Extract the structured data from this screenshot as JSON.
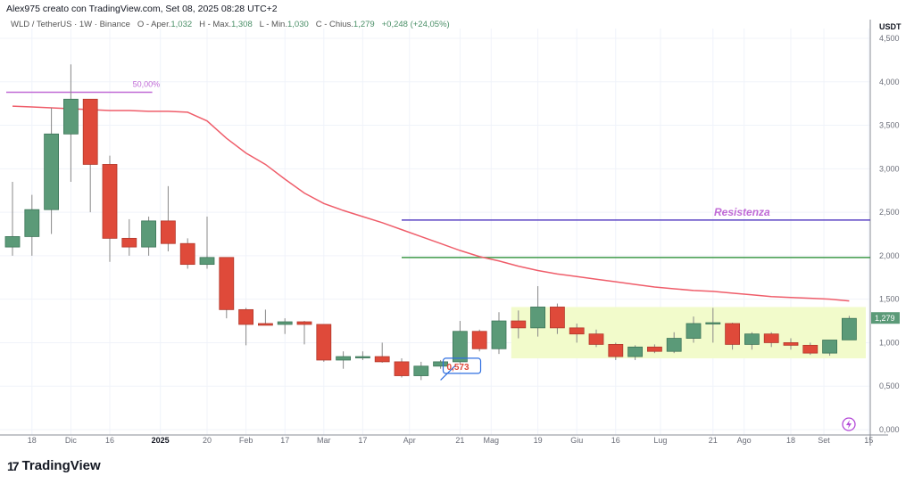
{
  "credit": "Alex975 creato con TradingView.com, Set 08, 2025 08:28 UTC+2",
  "legend": {
    "symbol": "WLD / TetherUS · 1W · Binance",
    "open_label": "O - Aper.",
    "open": "1,032",
    "high_label": "H - Max.",
    "high": "1,308",
    "low_label": "L - Min.",
    "low": "1,030",
    "close_label": "C - Chius.",
    "close": "1,279",
    "change": "+0,248 (+24,05%)"
  },
  "logo": "TradingView",
  "colors": {
    "up": "#5b9a78",
    "down": "#df4a3a",
    "ma": "#ef5d6a",
    "fib": "#c06ad6",
    "resistance": "#5b44c4",
    "support": "#3f9a48",
    "zone": "#f2fbcb",
    "last": "#5b9a78"
  },
  "chart_data": {
    "type": "candlestick",
    "interval": "1W",
    "currency": "USDT",
    "ylim": [
      0,
      4.6
    ],
    "yticks": [
      "0,000",
      "0,500",
      "1,000",
      "1,500",
      "2,000",
      "2,500",
      "3,000",
      "3,500",
      "4,000",
      "4,500"
    ],
    "ytick_values": [
      0,
      0.5,
      1,
      1.5,
      2,
      2.5,
      3,
      3.5,
      4,
      4.5
    ],
    "xticks": [
      {
        "label": "18",
        "week": 1
      },
      {
        "label": "Dic",
        "week": 3
      },
      {
        "label": "16",
        "week": 5
      },
      {
        "label": "2025",
        "week": 7.6,
        "bold": true
      },
      {
        "label": "20",
        "week": 10
      },
      {
        "label": "Feb",
        "week": 12
      },
      {
        "label": "17",
        "week": 14
      },
      {
        "label": "Mar",
        "week": 16
      },
      {
        "label": "17",
        "week": 18
      },
      {
        "label": "Apr",
        "week": 20.4
      },
      {
        "label": "21",
        "week": 23
      },
      {
        "label": "Mag",
        "week": 24.6
      },
      {
        "label": "19",
        "week": 27
      },
      {
        "label": "Giu",
        "week": 29
      },
      {
        "label": "16",
        "week": 31
      },
      {
        "label": "Lug",
        "week": 33.3
      },
      {
        "label": "21",
        "week": 36
      },
      {
        "label": "Ago",
        "week": 37.6
      },
      {
        "label": "18",
        "week": 40
      },
      {
        "label": "Set",
        "week": 41.7
      },
      {
        "label": "15",
        "week": 44
      }
    ],
    "candles": [
      [
        2.1,
        2.85,
        2.0,
        2.22
      ],
      [
        2.22,
        2.7,
        2.0,
        2.53
      ],
      [
        2.53,
        3.7,
        2.25,
        3.4
      ],
      [
        3.4,
        4.2,
        2.85,
        3.8
      ],
      [
        3.8,
        3.8,
        2.5,
        3.05
      ],
      [
        3.05,
        3.15,
        1.93,
        2.2
      ],
      [
        2.2,
        2.42,
        2.0,
        2.1
      ],
      [
        2.1,
        2.45,
        2.0,
        2.4
      ],
      [
        2.4,
        2.8,
        2.05,
        2.14
      ],
      [
        2.14,
        2.2,
        1.85,
        1.9
      ],
      [
        1.9,
        2.45,
        1.85,
        1.98
      ],
      [
        1.98,
        1.98,
        1.28,
        1.38
      ],
      [
        1.38,
        1.4,
        0.97,
        1.21
      ],
      [
        1.22,
        1.38,
        1.2,
        1.2
      ],
      [
        1.21,
        1.28,
        1.1,
        1.24
      ],
      [
        1.24,
        1.25,
        0.98,
        1.21
      ],
      [
        1.21,
        1.21,
        0.78,
        0.8
      ],
      [
        0.8,
        0.9,
        0.7,
        0.84
      ],
      [
        0.83,
        0.9,
        0.8,
        0.84
      ],
      [
        0.84,
        1.0,
        0.77,
        0.78
      ],
      [
        0.78,
        0.82,
        0.6,
        0.62
      ],
      [
        0.62,
        0.78,
        0.57,
        0.73
      ],
      [
        0.73,
        0.8,
        0.7,
        0.78
      ],
      [
        0.78,
        1.25,
        0.75,
        1.13
      ],
      [
        1.13,
        1.15,
        0.9,
        0.93
      ],
      [
        0.93,
        1.35,
        0.87,
        1.25
      ],
      [
        1.25,
        1.37,
        1.05,
        1.17
      ],
      [
        1.17,
        1.65,
        1.07,
        1.41
      ],
      [
        1.41,
        1.45,
        1.1,
        1.17
      ],
      [
        1.17,
        1.22,
        1.0,
        1.1
      ],
      [
        1.1,
        1.15,
        0.95,
        0.98
      ],
      [
        0.98,
        1.0,
        0.8,
        0.84
      ],
      [
        0.84,
        0.97,
        0.8,
        0.95
      ],
      [
        0.95,
        0.98,
        0.88,
        0.9
      ],
      [
        0.9,
        1.12,
        0.88,
        1.05
      ],
      [
        1.05,
        1.3,
        1.0,
        1.22
      ],
      [
        1.22,
        1.4,
        1.0,
        1.23
      ],
      [
        1.22,
        1.23,
        0.92,
        0.98
      ],
      [
        0.98,
        1.12,
        0.92,
        1.1
      ],
      [
        1.1,
        1.12,
        0.95,
        1.0
      ],
      [
        1.0,
        1.05,
        0.92,
        0.97
      ],
      [
        0.97,
        1.0,
        0.86,
        0.88
      ],
      [
        0.88,
        1.03,
        0.85,
        1.03
      ],
      [
        1.032,
        1.308,
        1.03,
        1.279
      ]
    ],
    "moving_average": [
      3.72,
      3.71,
      3.7,
      3.69,
      3.68,
      3.67,
      3.67,
      3.66,
      3.66,
      3.65,
      3.55,
      3.35,
      3.18,
      3.05,
      2.88,
      2.72,
      2.6,
      2.52,
      2.45,
      2.38,
      2.3,
      2.22,
      2.14,
      2.06,
      1.99,
      1.94,
      1.88,
      1.83,
      1.79,
      1.76,
      1.73,
      1.7,
      1.67,
      1.64,
      1.62,
      1.6,
      1.59,
      1.57,
      1.55,
      1.53,
      1.52,
      1.51,
      1.5,
      1.48
    ],
    "fib_level": {
      "label": "50,00%",
      "value": 3.88,
      "from_week": 0,
      "to_week": 7
    },
    "resistance": {
      "label": "Resistenza",
      "value": 2.41,
      "from_week": 20
    },
    "support": {
      "value": 1.98,
      "from_week": 20
    },
    "range_zone": {
      "from_week": 26,
      "to_week": 45,
      "low": 0.82,
      "high": 1.41
    },
    "annotation": {
      "label": "0,573",
      "week": 22.5
    },
    "last_price_label": "1,279"
  }
}
